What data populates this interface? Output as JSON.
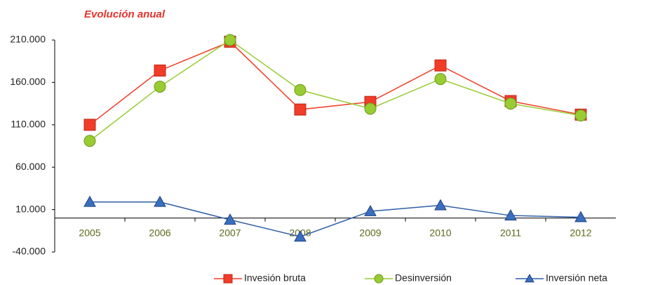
{
  "chart_data": {
    "type": "line",
    "title": "Evolución anual",
    "categories": [
      "2005",
      "2006",
      "2007",
      "2008",
      "2009",
      "2010",
      "2011",
      "2012"
    ],
    "series": [
      {
        "name": "Invesión bruta",
        "color": "#f03c28",
        "marker": "square",
        "values": [
          110000,
          174000,
          208000,
          128000,
          137000,
          180000,
          138000,
          122000
        ]
      },
      {
        "name": "Desinversión",
        "color": "#99cc33",
        "marker": "circle",
        "values": [
          91000,
          155000,
          210000,
          151000,
          129000,
          164000,
          135000,
          121000
        ]
      },
      {
        "name": "Inversión neta",
        "color": "#2f5fa8",
        "marker": "triangle",
        "values": [
          19000,
          19000,
          -2000,
          -22000,
          8000,
          15000,
          3000,
          1000
        ]
      }
    ],
    "ylim": [
      -40000,
      210000
    ],
    "yticks": [
      {
        "value": -40000,
        "label": "-40.000"
      },
      {
        "value": 10000,
        "label": "10.000"
      },
      {
        "value": 60000,
        "label": "60.000"
      },
      {
        "value": 110000,
        "label": "110.000"
      },
      {
        "value": 160000,
        "label": "160.000"
      },
      {
        "value": 210000,
        "label": "210.000"
      }
    ],
    "legend": "bottom"
  }
}
